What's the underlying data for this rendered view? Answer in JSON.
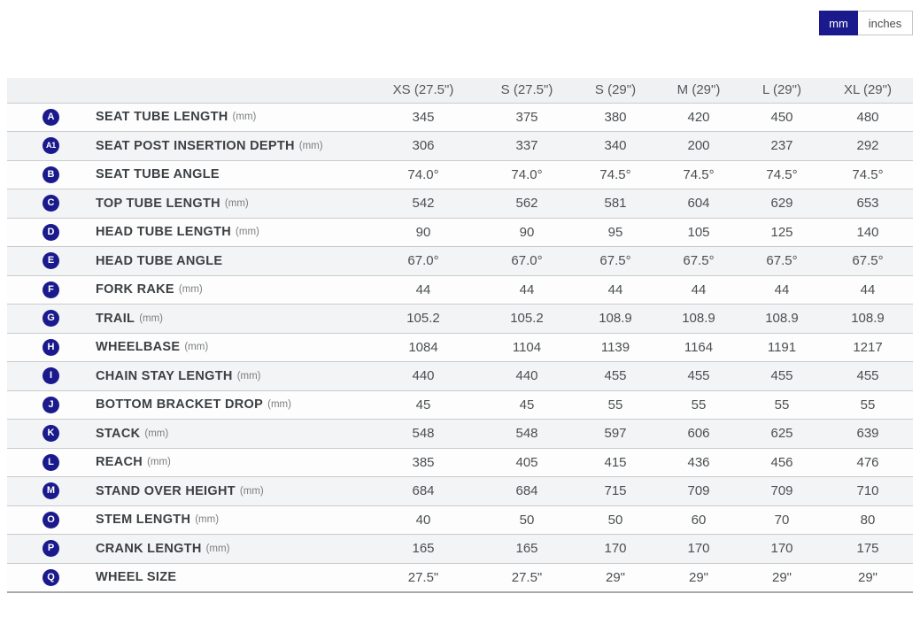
{
  "unit_toggle": {
    "mm_label": "mm",
    "inches_label": "inches",
    "selected": "mm",
    "selected_color": "#1a1a8c"
  },
  "table": {
    "columns": [
      "XS (27.5\")",
      "S (27.5\")",
      "S (29\")",
      "M (29\")",
      "L (29\")",
      "XL (29\")"
    ],
    "rows": [
      {
        "badge": "A",
        "label": "SEAT TUBE LENGTH",
        "unit": "(mm)",
        "values": [
          "345",
          "375",
          "380",
          "420",
          "450",
          "480"
        ]
      },
      {
        "badge": "A1",
        "label": "SEAT POST INSERTION DEPTH",
        "unit": "(mm)",
        "values": [
          "306",
          "337",
          "340",
          "200",
          "237",
          "292"
        ]
      },
      {
        "badge": "B",
        "label": "SEAT TUBE ANGLE",
        "unit": "",
        "values": [
          "74.0°",
          "74.0°",
          "74.5°",
          "74.5°",
          "74.5°",
          "74.5°"
        ]
      },
      {
        "badge": "C",
        "label": "TOP TUBE LENGTH",
        "unit": "(mm)",
        "values": [
          "542",
          "562",
          "581",
          "604",
          "629",
          "653"
        ]
      },
      {
        "badge": "D",
        "label": "HEAD TUBE LENGTH",
        "unit": "(mm)",
        "values": [
          "90",
          "90",
          "95",
          "105",
          "125",
          "140"
        ]
      },
      {
        "badge": "E",
        "label": "HEAD TUBE ANGLE",
        "unit": "",
        "values": [
          "67.0°",
          "67.0°",
          "67.5°",
          "67.5°",
          "67.5°",
          "67.5°"
        ]
      },
      {
        "badge": "F",
        "label": "FORK RAKE",
        "unit": "(mm)",
        "values": [
          "44",
          "44",
          "44",
          "44",
          "44",
          "44"
        ]
      },
      {
        "badge": "G",
        "label": "TRAIL",
        "unit": "(mm)",
        "values": [
          "105.2",
          "105.2",
          "108.9",
          "108.9",
          "108.9",
          "108.9"
        ]
      },
      {
        "badge": "H",
        "label": "WHEELBASE",
        "unit": "(mm)",
        "values": [
          "1084",
          "1104",
          "1139",
          "1164",
          "1191",
          "1217"
        ]
      },
      {
        "badge": "I",
        "label": "CHAIN STAY LENGTH",
        "unit": "(mm)",
        "values": [
          "440",
          "440",
          "455",
          "455",
          "455",
          "455"
        ]
      },
      {
        "badge": "J",
        "label": "BOTTOM BRACKET DROP",
        "unit": "(mm)",
        "values": [
          "45",
          "45",
          "55",
          "55",
          "55",
          "55"
        ]
      },
      {
        "badge": "K",
        "label": "STACK",
        "unit": "(mm)",
        "values": [
          "548",
          "548",
          "597",
          "606",
          "625",
          "639"
        ]
      },
      {
        "badge": "L",
        "label": "REACH",
        "unit": "(mm)",
        "values": [
          "385",
          "405",
          "415",
          "436",
          "456",
          "476"
        ]
      },
      {
        "badge": "M",
        "label": "STAND OVER HEIGHT",
        "unit": "(mm)",
        "values": [
          "684",
          "684",
          "715",
          "709",
          "709",
          "710"
        ]
      },
      {
        "badge": "O",
        "label": "STEM LENGTH",
        "unit": "(mm)",
        "values": [
          "40",
          "50",
          "50",
          "60",
          "70",
          "80"
        ]
      },
      {
        "badge": "P",
        "label": "CRANK LENGTH",
        "unit": "(mm)",
        "values": [
          "165",
          "165",
          "170",
          "170",
          "170",
          "175"
        ]
      },
      {
        "badge": "Q",
        "label": "WHEEL SIZE",
        "unit": "",
        "values": [
          "27.5\"",
          "27.5\"",
          "29\"",
          "29\"",
          "29\"",
          "29\""
        ]
      }
    ]
  }
}
